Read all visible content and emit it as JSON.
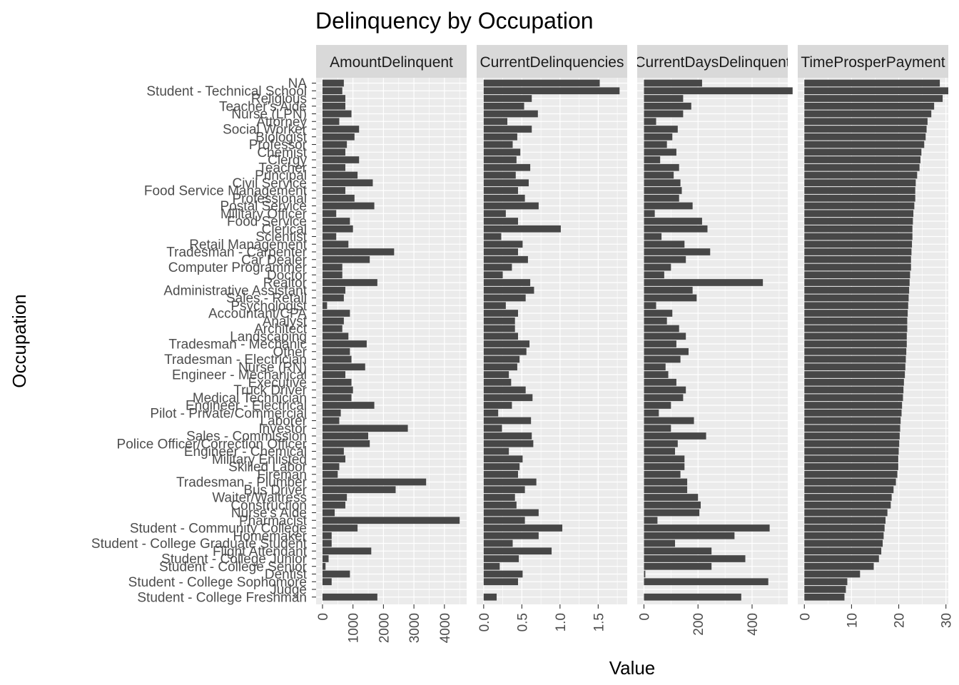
{
  "chart_data": {
    "type": "bar",
    "orientation": "horizontal",
    "title": "Delinquency by Occupation",
    "xlabel": "Value",
    "ylabel": "Occupation",
    "grid": true,
    "legend": "none",
    "colors": {
      "bar": "#474747",
      "panel_background": "#ebebeb",
      "grid_major": "#ffffff",
      "strip_background": "#d9d9d9",
      "tick_label": "#4d4d4d"
    },
    "categories": [
      "NA",
      "Student - Technical School",
      "Religious",
      "Teacher's Aide",
      "Nurse (LPN)",
      "Attorney",
      "Social Worker",
      "Biologist",
      "Professor",
      "Chemist",
      "Clergy",
      "Teacher",
      "Principal",
      "Civil Service",
      "Food Service Management",
      "Professional",
      "Postal Service",
      "Military Officer",
      "Food Service",
      "Clerical",
      "Scientist",
      "Retail Management",
      "Tradesman - Carpenter",
      "Car Dealer",
      "Computer Programmer",
      "Doctor",
      "Realtor",
      "Administrative Assistant",
      "Sales - Retail",
      "Psychologist",
      "Accountant/CPA",
      "Analyst",
      "Architect",
      "Landscaping",
      "Tradesman - Mechanic",
      "Other",
      "Tradesman - Electrician",
      "Nurse (RN)",
      "Engineer - Mechanical",
      "Executive",
      "Truck Driver",
      "Medical Technician",
      "Engineer - Electrical",
      "Pilot - Private/Commercial",
      "Laborer",
      "Investor",
      "Sales - Commission",
      "Police Officer/Correction Officer",
      "Engineer - Chemical",
      "Military Enlisted",
      "Skilled Labor",
      "Fireman",
      "Tradesman - Plumber",
      "Bus Driver",
      "Waiter/Waitress",
      "Construction",
      "Nurse's Aide",
      "Pharmacist",
      "Student - Community College",
      "Homemaker",
      "Student - College Graduate Student",
      "Flight Attendant",
      "Student - College Junior",
      "Student - College Senior",
      "Dentist",
      "Student - College Sophomore",
      "Judge",
      "Student - College Freshman"
    ],
    "series": [
      {
        "name": "AmountDelinquent",
        "xlim": [
          -210,
          4730
        ],
        "ticks": [
          0,
          1000,
          2000,
          3000,
          4000
        ],
        "tick_labels": [
          "0",
          "1000",
          "2000",
          "3000",
          "4000"
        ],
        "values": [
          700,
          650,
          750,
          750,
          950,
          550,
          1200,
          1050,
          800,
          750,
          1200,
          750,
          1150,
          1650,
          750,
          1050,
          1700,
          450,
          900,
          1000,
          450,
          850,
          2350,
          1550,
          650,
          650,
          1800,
          750,
          700,
          150,
          900,
          700,
          650,
          850,
          1450,
          900,
          950,
          1400,
          750,
          950,
          1000,
          950,
          1700,
          600,
          550,
          2800,
          1500,
          1550,
          700,
          750,
          550,
          500,
          3400,
          2400,
          800,
          750,
          400,
          4500,
          1150,
          300,
          300,
          1600,
          200,
          100,
          900,
          300,
          0,
          1800
        ]
      },
      {
        "name": "CurrentDelinquencies",
        "xlim": [
          -0.092,
          1.88
        ],
        "ticks": [
          0.0,
          0.5,
          1.0,
          1.5
        ],
        "tick_labels": [
          "0.0",
          "0.5",
          "1.0",
          "1.5"
        ],
        "values": [
          1.52,
          1.78,
          0.63,
          0.53,
          0.71,
          0.31,
          0.63,
          0.44,
          0.38,
          0.48,
          0.43,
          0.61,
          0.42,
          0.59,
          0.45,
          0.54,
          0.72,
          0.29,
          0.45,
          1.01,
          0.23,
          0.51,
          0.45,
          0.58,
          0.37,
          0.25,
          0.61,
          0.66,
          0.55,
          0.29,
          0.45,
          0.41,
          0.41,
          0.45,
          0.6,
          0.56,
          0.47,
          0.44,
          0.33,
          0.36,
          0.55,
          0.64,
          0.37,
          0.19,
          0.62,
          0.24,
          0.63,
          0.65,
          0.33,
          0.51,
          0.47,
          0.45,
          0.69,
          0.54,
          0.41,
          0.43,
          0.72,
          0.54,
          1.03,
          0.72,
          0.38,
          0.89,
          0.46,
          0.21,
          0.51,
          0.45,
          0,
          0.17
        ]
      },
      {
        "name": "CurrentDaysDelinquent",
        "xlim": [
          -25,
          532
        ],
        "ticks": [
          0,
          200,
          400
        ],
        "tick_labels": [
          "0",
          "200",
          "400"
        ],
        "values": [
          215,
          550,
          145,
          175,
          145,
          45,
          125,
          105,
          85,
          120,
          60,
          130,
          110,
          135,
          140,
          130,
          180,
          40,
          215,
          235,
          65,
          150,
          245,
          155,
          100,
          75,
          440,
          180,
          195,
          45,
          105,
          85,
          130,
          155,
          120,
          165,
          135,
          80,
          90,
          120,
          155,
          145,
          100,
          55,
          185,
          100,
          230,
          125,
          115,
          150,
          150,
          135,
          160,
          160,
          200,
          210,
          205,
          50,
          465,
          335,
          115,
          250,
          375,
          250,
          5,
          460,
          0,
          360
        ]
      },
      {
        "name": "TimeProsperPayment",
        "xlim": [
          -1.4,
          30.5
        ],
        "ticks": [
          0,
          10,
          20,
          30
        ],
        "tick_labels": [
          "0",
          "10",
          "20",
          "30"
        ],
        "values": [
          28.7,
          30.5,
          29.3,
          27.5,
          26.9,
          26.1,
          25.9,
          25.7,
          25.4,
          24.8,
          24.6,
          24.4,
          23.9,
          23.6,
          23.5,
          23.5,
          23.3,
          23.1,
          23.0,
          22.9,
          22.9,
          22.8,
          22.7,
          22.6,
          22.6,
          22.4,
          22.3,
          22.2,
          22.1,
          22.0,
          21.9,
          21.8,
          21.8,
          21.7,
          21.7,
          21.6,
          21.5,
          21.4,
          21.3,
          21.1,
          21.0,
          20.9,
          20.7,
          20.6,
          20.4,
          20.3,
          20.2,
          20.1,
          20.0,
          19.9,
          19.9,
          19.7,
          19.4,
          18.9,
          18.5,
          18.3,
          17.6,
          17.2,
          17.0,
          16.8,
          16.6,
          16.3,
          15.8,
          14.7,
          11.8,
          9.1,
          8.8,
          8.5
        ]
      }
    ]
  }
}
